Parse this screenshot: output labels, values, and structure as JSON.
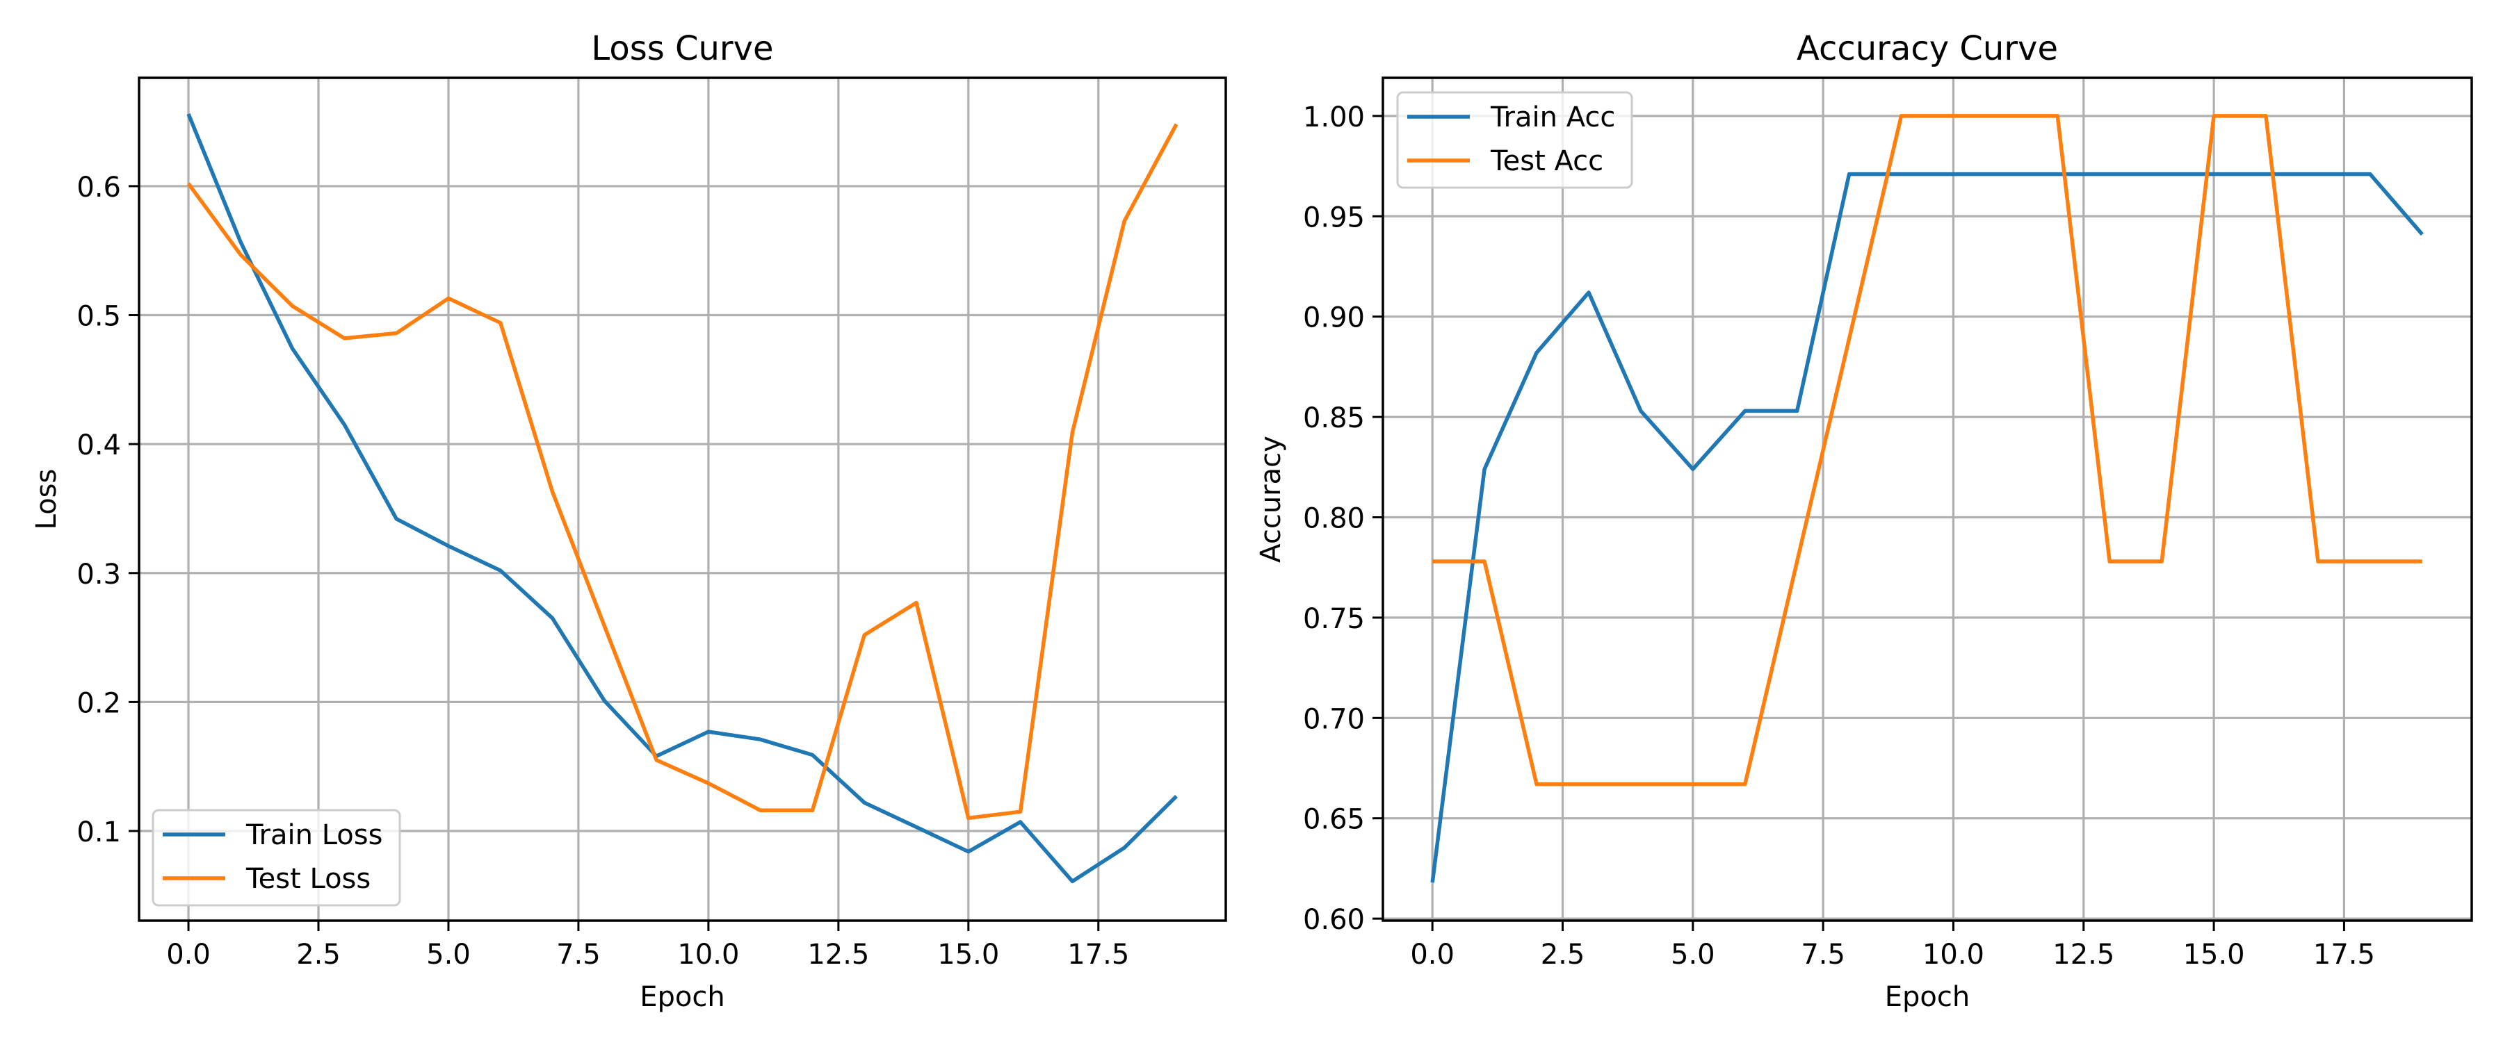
{
  "figure": {
    "background": "#ffffff",
    "grid_color": "#b0b0b0",
    "axis_color": "#000000"
  },
  "chart_data": [
    {
      "type": "line",
      "title": "Loss Curve",
      "xlabel": "Epoch",
      "ylabel": "Loss",
      "x": [
        0,
        1,
        2,
        3,
        4,
        5,
        6,
        7,
        8,
        9,
        10,
        11,
        12,
        13,
        14,
        15,
        16,
        17,
        18,
        19
      ],
      "series": [
        {
          "name": "Train Loss",
          "color": "#1f77b4",
          "values": [
            0.656,
            0.557,
            0.474,
            0.415,
            0.342,
            0.321,
            0.302,
            0.265,
            0.201,
            0.158,
            0.177,
            0.171,
            0.159,
            0.122,
            0.103,
            0.084,
            0.107,
            0.061,
            0.087,
            0.127
          ]
        },
        {
          "name": "Test Loss",
          "color": "#ff7f0e",
          "values": [
            0.602,
            0.547,
            0.507,
            0.482,
            0.486,
            0.513,
            0.494,
            0.363,
            0.259,
            0.155,
            0.137,
            0.116,
            0.116,
            0.252,
            0.277,
            0.11,
            0.115,
            0.409,
            0.573,
            0.648
          ]
        }
      ],
      "xlim": [
        -0.95,
        19.95
      ],
      "ylim": [
        0.0305,
        0.684
      ],
      "xticks": [
        0.0,
        2.5,
        5.0,
        7.5,
        10.0,
        12.5,
        15.0,
        17.5
      ],
      "xtick_labels": [
        "0.0",
        "2.5",
        "5.0",
        "7.5",
        "10.0",
        "12.5",
        "15.0",
        "17.5"
      ],
      "yticks": [
        0.1,
        0.2,
        0.3,
        0.4,
        0.5,
        0.6
      ],
      "ytick_labels": [
        "0.1",
        "0.2",
        "0.3",
        "0.4",
        "0.5",
        "0.6"
      ],
      "grid": true,
      "legend_position": "lower left"
    },
    {
      "type": "line",
      "title": "Accuracy Curve",
      "xlabel": "Epoch",
      "ylabel": "Accuracy",
      "x": [
        0,
        1,
        2,
        3,
        4,
        5,
        6,
        7,
        8,
        9,
        10,
        11,
        12,
        13,
        14,
        15,
        16,
        17,
        18,
        19
      ],
      "series": [
        {
          "name": "Train Acc",
          "color": "#1f77b4",
          "values": [
            0.618,
            0.824,
            0.882,
            0.912,
            0.853,
            0.824,
            0.853,
            0.853,
            0.971,
            0.971,
            0.971,
            0.971,
            0.971,
            0.971,
            0.971,
            0.971,
            0.971,
            0.971,
            0.971,
            0.941
          ]
        },
        {
          "name": "Test Acc",
          "color": "#ff7f0e",
          "values": [
            0.778,
            0.778,
            0.667,
            0.667,
            0.667,
            0.667,
            0.667,
            0.778,
            0.889,
            1.0,
            1.0,
            1.0,
            1.0,
            0.778,
            0.778,
            1.0,
            1.0,
            0.778,
            0.778,
            0.778
          ]
        }
      ],
      "xlim": [
        -0.95,
        19.95
      ],
      "ylim": [
        0.599,
        1.019
      ],
      "xticks": [
        0.0,
        2.5,
        5.0,
        7.5,
        10.0,
        12.5,
        15.0,
        17.5
      ],
      "xtick_labels": [
        "0.0",
        "2.5",
        "5.0",
        "7.5",
        "10.0",
        "12.5",
        "15.0",
        "17.5"
      ],
      "yticks": [
        0.6,
        0.65,
        0.7,
        0.75,
        0.8,
        0.85,
        0.9,
        0.95,
        1.0
      ],
      "ytick_labels": [
        "0.60",
        "0.65",
        "0.70",
        "0.75",
        "0.80",
        "0.85",
        "0.90",
        "0.95",
        "1.00"
      ],
      "grid": true,
      "legend_position": "upper left"
    }
  ]
}
